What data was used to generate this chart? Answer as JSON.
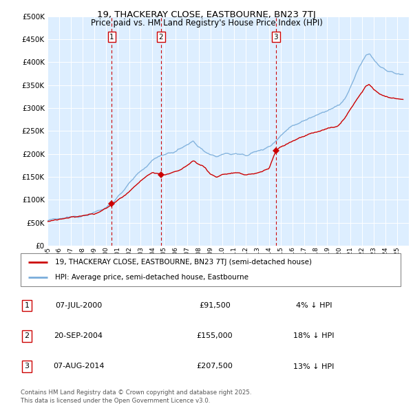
{
  "title1": "19, THACKERAY CLOSE, EASTBOURNE, BN23 7TJ",
  "title2": "Price paid vs. HM Land Registry's House Price Index (HPI)",
  "legend_line1": "19, THACKERAY CLOSE, EASTBOURNE, BN23 7TJ (semi-detached house)",
  "legend_line2": "HPI: Average price, semi-detached house, Eastbourne",
  "footer": "Contains HM Land Registry data © Crown copyright and database right 2025.\nThis data is licensed under the Open Government Licence v3.0.",
  "red_color": "#cc0000",
  "blue_color": "#7aadda",
  "background_color": "#ddeeff",
  "ylim": [
    0,
    500000
  ],
  "yticks": [
    0,
    50000,
    100000,
    150000,
    200000,
    250000,
    300000,
    350000,
    400000,
    450000,
    500000
  ],
  "sales": [
    {
      "num": 1,
      "year": 2000.52,
      "price": 91500,
      "label": "1",
      "date": "07-JUL-2000",
      "price_str": "£91,500",
      "pct": "4% ↓ HPI"
    },
    {
      "num": 2,
      "year": 2004.72,
      "price": 155000,
      "label": "2",
      "date": "20-SEP-2004",
      "price_str": "£155,000",
      "pct": "18% ↓ HPI"
    },
    {
      "num": 3,
      "year": 2014.6,
      "price": 207500,
      "label": "3",
      "date": "07-AUG-2014",
      "price_str": "£207,500",
      "pct": "13% ↓ HPI"
    }
  ]
}
